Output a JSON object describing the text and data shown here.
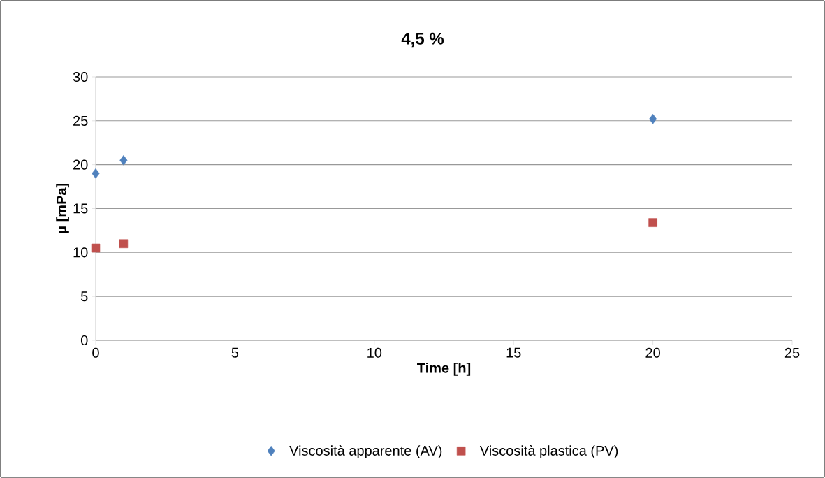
{
  "chart_data": {
    "type": "scatter",
    "title": "4,5 %",
    "xlabel": "Time [h]",
    "ylabel": "μ [mPa]",
    "x": [
      0,
      1,
      20
    ],
    "series": [
      {
        "name": "Viscosità apparente (AV)",
        "color": "#4f81bd",
        "marker": "diamond",
        "values": [
          19.0,
          20.5,
          25.2
        ]
      },
      {
        "name": "Viscosità plastica (PV)",
        "color": "#c0504d",
        "marker": "square",
        "values": [
          10.5,
          11.0,
          13.4
        ]
      }
    ],
    "xlim": [
      0,
      25
    ],
    "xticks": [
      0,
      5,
      10,
      15,
      20,
      25
    ],
    "ylim": [
      0,
      30
    ],
    "yticks": [
      0,
      5,
      10,
      15,
      20,
      25,
      30
    ],
    "grid": "y",
    "legend": "bottom"
  }
}
